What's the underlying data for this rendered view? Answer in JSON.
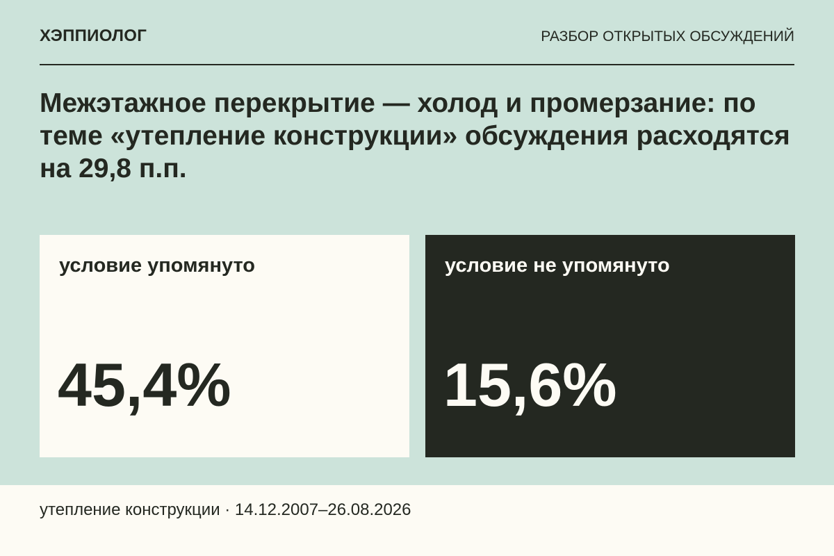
{
  "header": {
    "brand": "ХЭППИОЛОГ",
    "section": "РАЗБОР ОТКРЫТЫХ ОБСУЖДЕНИЙ"
  },
  "headline": "Межэтажное перекрытие — холод и промерзание: по теме «утепление конструкции» обсуждения расходятся на 29,8 п.п.",
  "cards": [
    {
      "label": "условие упомянуто",
      "value": "45,4%"
    },
    {
      "label": "условие не упомянуто",
      "value": "15,6%"
    }
  ],
  "footer": {
    "text": "утепление конструкции · 14.12.2007–26.08.2026"
  },
  "colors": {
    "background": "#cce3da",
    "dark": "#242821",
    "light": "#fdfbf4"
  }
}
